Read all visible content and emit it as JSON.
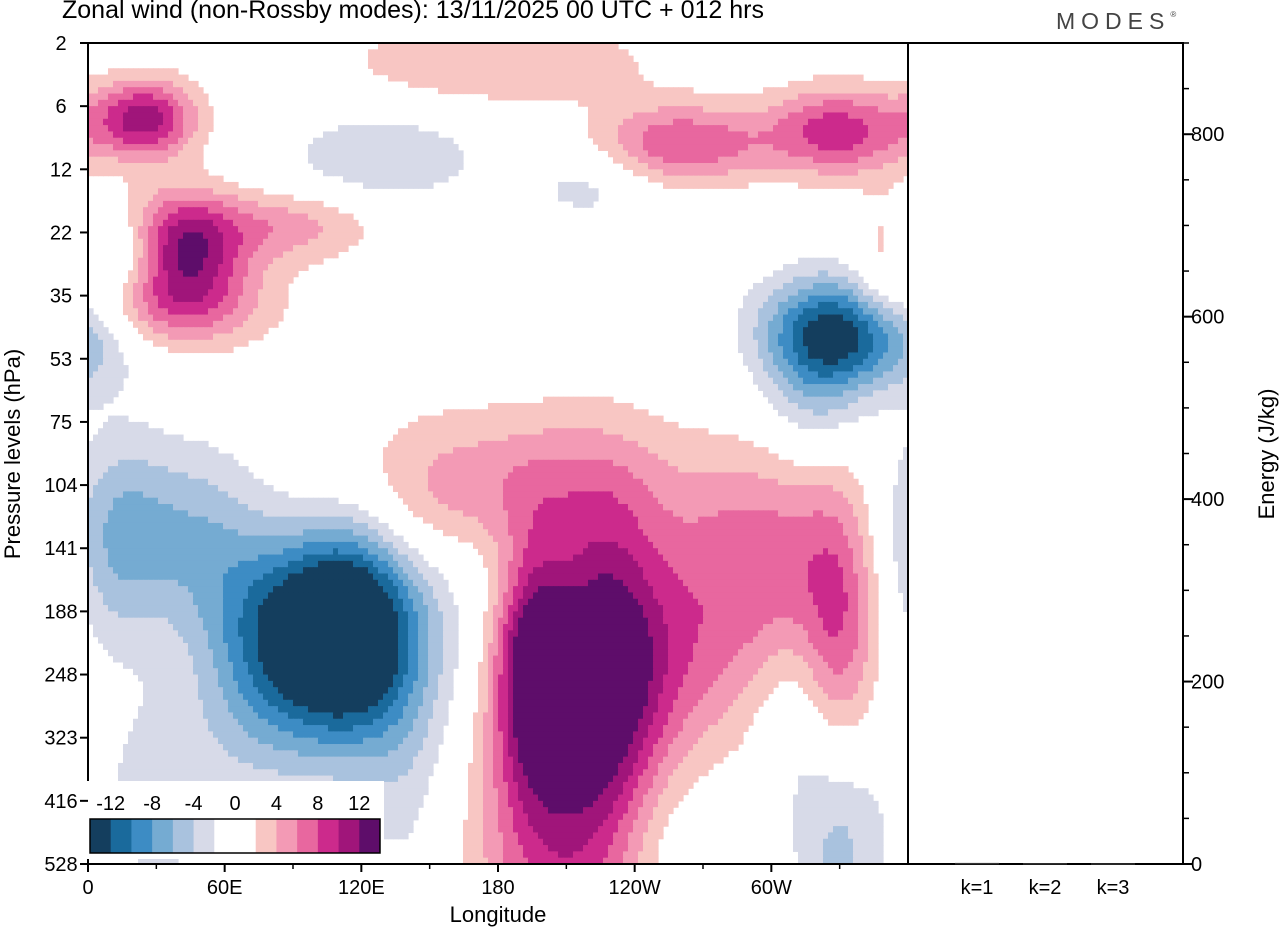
{
  "title": "Zonal wind (non-Rossby modes):  13/11/2025  00 UTC  + 012 hrs",
  "brand": "MODES",
  "brand_mark": "®",
  "colors": {
    "neg": [
      "#143e5e",
      "#1a6a9c",
      "#3d8cc4",
      "#75abd2",
      "#a9c2de",
      "#d7dae8"
    ],
    "zero": "#ffffff",
    "pos": [
      "#f8c6c3",
      "#f39ab5",
      "#e8679f",
      "#cc2a8c",
      "#a0157a",
      "#5e0d6a"
    ]
  },
  "chart_data": [
    {
      "type": "heatmap",
      "title": "Zonal wind (non-Rossby modes)",
      "xlabel": "Longitude",
      "ylabel": "Pressure levels (hPa)",
      "x_ticks": [
        {
          "lon": 0,
          "label": "0"
        },
        {
          "lon": 60,
          "label": "60E"
        },
        {
          "lon": 120,
          "label": "120E"
        },
        {
          "lon": 180,
          "label": "180"
        },
        {
          "lon": 240,
          "label": "120W"
        },
        {
          "lon": 300,
          "label": "60W"
        }
      ],
      "x_range": [
        0,
        360
      ],
      "y_levels": [
        2,
        6,
        12,
        22,
        35,
        53,
        75,
        104,
        141,
        188,
        248,
        323,
        416,
        528
      ],
      "legend": {
        "placement": "bottom-left",
        "labels": [
          "-12",
          "-8",
          "-4",
          "0",
          "4",
          "8",
          "12"
        ],
        "levels": [
          -12,
          -10,
          -8,
          -6,
          -4,
          -2,
          0,
          2,
          4,
          6,
          8,
          10,
          12
        ]
      },
      "blobs": [
        {
          "lon": 95,
          "lev": 9.5,
          "amp": -12,
          "wl": 34,
          "wk": 1.2
        },
        {
          "lon": 115,
          "lev": 9.0,
          "amp": -11,
          "wl": 20,
          "wk": 1.3
        },
        {
          "lon": 70,
          "lev": 9.8,
          "amp": -3,
          "wl": 20,
          "wk": 1.5
        },
        {
          "lon": 30,
          "lev": 12.0,
          "amp": -3,
          "wl": 18,
          "wk": 1.2
        },
        {
          "lon": 140,
          "lev": 11.6,
          "amp": -2.5,
          "wl": 16,
          "wk": 1.8
        },
        {
          "lon": 250,
          "lev": 12.8,
          "amp": -3,
          "wl": 22,
          "wk": 1.2
        },
        {
          "lon": 330,
          "lev": 12.4,
          "amp": -6,
          "wl": 14,
          "wk": 1.5
        },
        {
          "lon": 310,
          "lev": 10.7,
          "amp": -2,
          "wl": 12,
          "wk": 1.0
        },
        {
          "lon": 40,
          "lev": 7.7,
          "amp": -6,
          "wl": 32,
          "wk": 1.0
        },
        {
          "lon": 12,
          "lev": 8.0,
          "amp": -3,
          "wl": 14,
          "wk": 1.3
        },
        {
          "lon": 185,
          "lev": 8.2,
          "amp": -2,
          "wl": 30,
          "wk": 0.7
        },
        {
          "lon": 15,
          "lev": 3.5,
          "amp": -8,
          "wl": 20,
          "wk": 0.55
        },
        {
          "lon": 340,
          "lev": 4.5,
          "amp": -13,
          "wl": 28,
          "wk": 0.6
        },
        {
          "lon": 320,
          "lev": 5.2,
          "amp": -6,
          "wl": 16,
          "wk": 0.9
        },
        {
          "lon": 130,
          "lev": 1.8,
          "amp": -4,
          "wl": 30,
          "wk": 0.5
        },
        {
          "lon": 220,
          "lev": 2.2,
          "amp": -3,
          "wl": 20,
          "wk": 0.5
        },
        {
          "lon": 195,
          "lev": 9.8,
          "amp": 12,
          "wl": 12,
          "wk": 1.4
        },
        {
          "lon": 225,
          "lev": 9.8,
          "amp": 11,
          "wl": 18,
          "wk": 1.8
        },
        {
          "lon": 255,
          "lev": 9.6,
          "amp": 6,
          "wl": 30,
          "wk": 1.4
        },
        {
          "lon": 210,
          "lev": 12.2,
          "amp": 7,
          "wl": 30,
          "wk": 1.6
        },
        {
          "lon": 215,
          "lev": 14.4,
          "amp": 4,
          "wl": 30,
          "wk": 1.2
        },
        {
          "lon": 180,
          "lev": 7.0,
          "amp": 5,
          "wl": 60,
          "wk": 0.9
        },
        {
          "lon": 110,
          "lev": 7.8,
          "amp": 3,
          "wl": 40,
          "wk": 0.8
        },
        {
          "lon": 300,
          "lev": 8.2,
          "amp": 6,
          "wl": 26,
          "wk": 1.2
        },
        {
          "lon": 330,
          "lev": 9.6,
          "amp": 7,
          "wl": 12,
          "wk": 1.8
        },
        {
          "lon": 60,
          "lev": 9.7,
          "amp": 3,
          "wl": 26,
          "wk": 1.0
        },
        {
          "lon": 25,
          "lev": 4.1,
          "amp": 10,
          "wl": 34,
          "wk": 0.55
        },
        {
          "lon": 40,
          "lev": 3.2,
          "amp": 12,
          "wl": 18,
          "wk": 0.6
        },
        {
          "lon": 85,
          "lev": 2.9,
          "amp": 5,
          "wl": 28,
          "wk": 0.4
        },
        {
          "lon": 25,
          "lev": 1.2,
          "amp": 11,
          "wl": 16,
          "wk": 0.45
        },
        {
          "lon": 260,
          "lev": 1.6,
          "amp": 8,
          "wl": 28,
          "wk": 0.45
        },
        {
          "lon": 330,
          "lev": 1.4,
          "amp": 9,
          "wl": 22,
          "wk": 0.5
        },
        {
          "lon": 350,
          "lev": 3.5,
          "amp": 5,
          "wl": 10,
          "wk": 0.7
        },
        {
          "lon": 180,
          "lev": 0.3,
          "amp": 4,
          "wl": 50,
          "wk": 0.5
        }
      ]
    },
    {
      "type": "bar",
      "ylabel": "Energy (J/kg)",
      "ylim": [
        0,
        900
      ],
      "y_ticks": [
        0,
        200,
        400,
        600,
        800
      ],
      "categories": [
        "k=1",
        "k=2",
        "k=3"
      ],
      "values": [
        1.2,
        1.0,
        0.8
      ]
    }
  ]
}
